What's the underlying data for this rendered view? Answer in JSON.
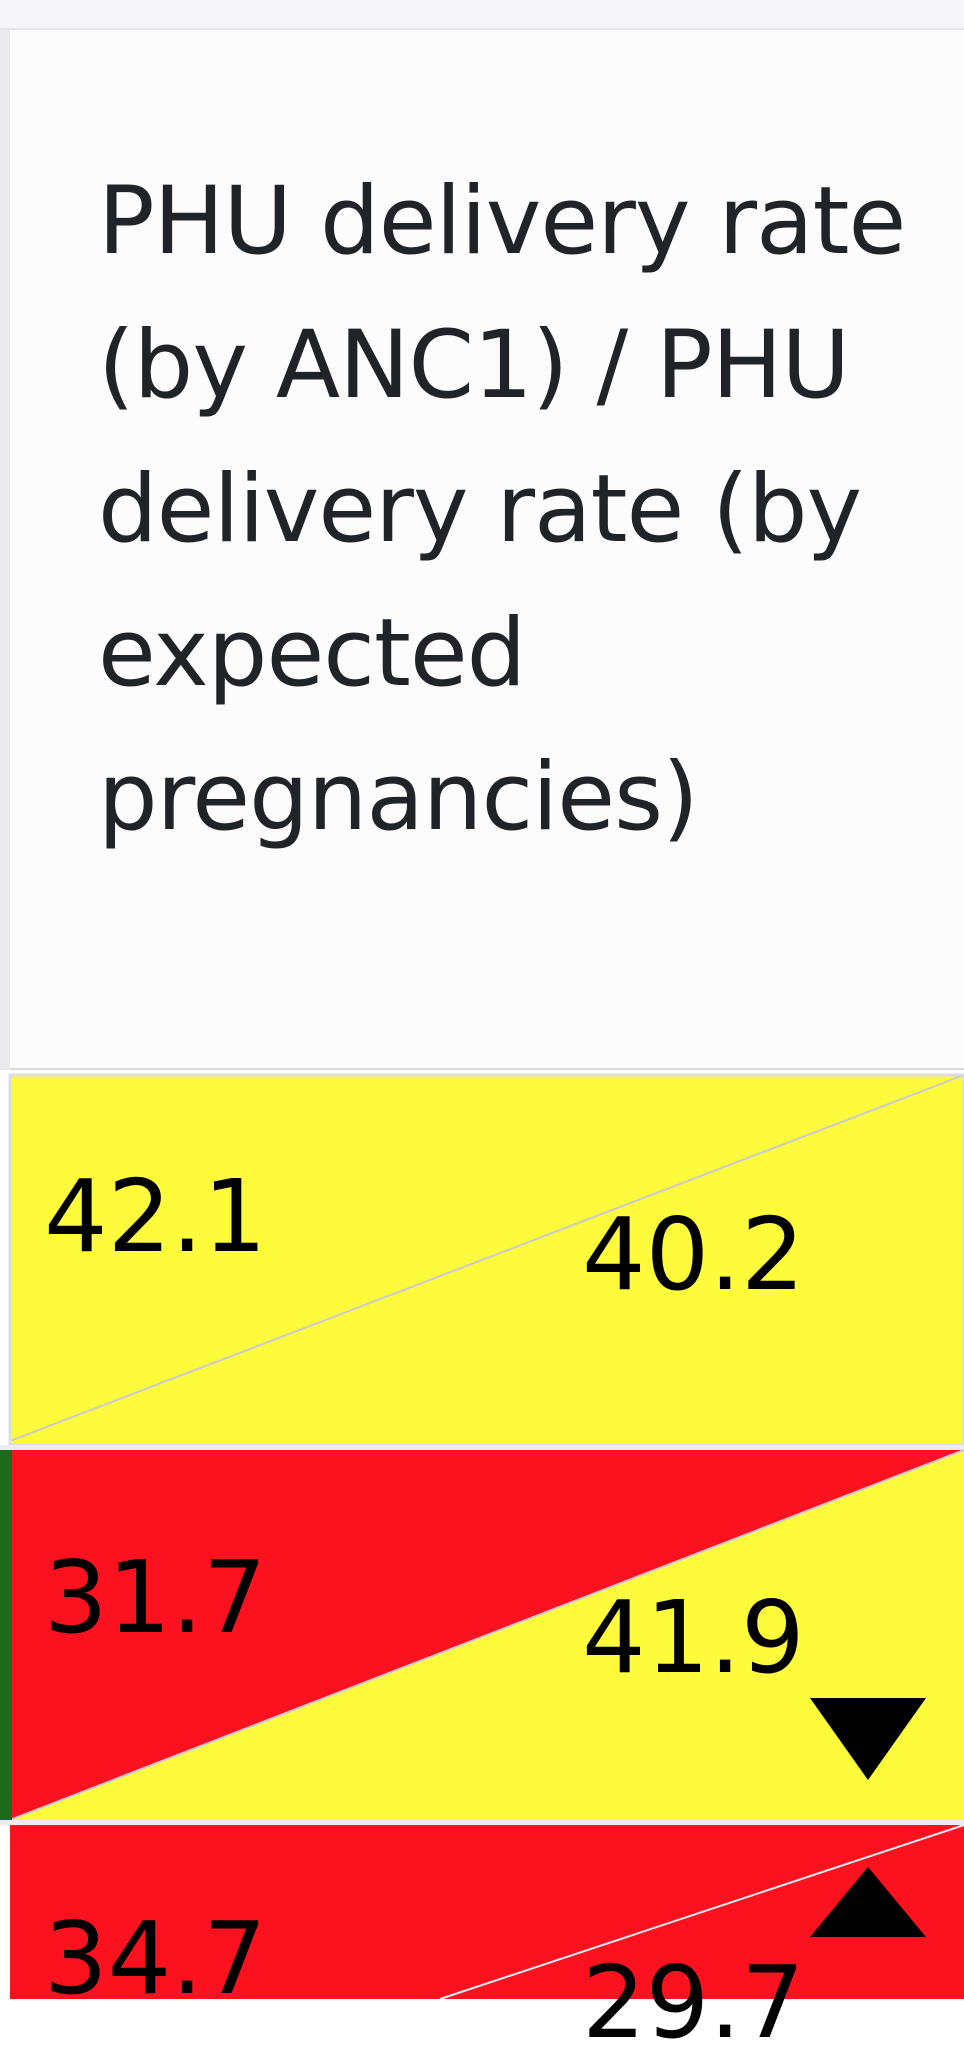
{
  "column_header": {
    "title": "PHU delivery rate (by ANC1) / PHU delivery rate (by expected pregnancies)"
  },
  "colors": {
    "yellow": "#fdfb3b",
    "red": "#fc121f",
    "green_stripe": "#1a6b1a",
    "diagonal_line": "#c9c9d6"
  },
  "rows": [
    {
      "left_value": "42.1",
      "right_value": "40.2",
      "left_color": "yellow",
      "right_color": "yellow",
      "trend": "none"
    },
    {
      "left_value": "31.7",
      "right_value": "41.9",
      "left_color": "red",
      "right_color": "yellow",
      "trend": "down-triangle-icon"
    },
    {
      "left_value": "34.7",
      "right_value": "29.7",
      "left_color": "red",
      "right_color": "red",
      "trend": "up-triangle-icon"
    }
  ]
}
